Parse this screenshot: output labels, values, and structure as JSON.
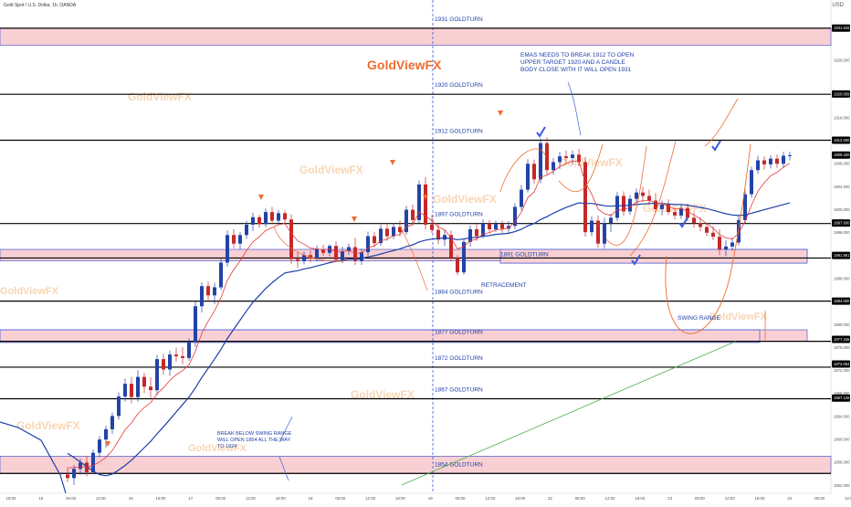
{
  "header": {
    "symbol": "Gold Spot / U.S. Dollar, 1h, OANDA",
    "currency": "USD"
  },
  "watermark": "GoldViewFX",
  "colors": {
    "up": "#2343a8",
    "down": "#c62828",
    "ema_fast": "#e53935",
    "ema_slow": "#1e3fa8",
    "ema_long": "#4caf50",
    "zone_fill": "#f8d0d4",
    "zone_stroke": "#4b5cd6",
    "level_line": "#000000",
    "annotation_text": "#1e3fa8",
    "projection": "#ef6c2f",
    "check": "#3b5bdb"
  },
  "chart_data": {
    "type": "candlestick",
    "yaxis_ticks": [
      "1931.526",
      "1926.000",
      "1920.000",
      "1916.000",
      "1912.000",
      "1908.000",
      "1904.000",
      "1900.000",
      "1896.000",
      "1892.000",
      "1888.000",
      "1884.000",
      "1880.000",
      "1876.000",
      "1872.000",
      "1868.000",
      "1864.000",
      "1860.000",
      "1856.000",
      "1852.000"
    ],
    "price_labels": [
      {
        "value": 1931.526,
        "text": "1931.526"
      },
      {
        "value": 1920.059,
        "text": "1920.059"
      },
      {
        "value": 1912.0,
        "text": "1912.000"
      },
      {
        "value": 1909.42,
        "text": "1909.420\n33:18"
      },
      {
        "value": 1897.6,
        "text": "1897.600"
      },
      {
        "value": 1891.951,
        "text": "1891.951"
      },
      {
        "value": 1884.0,
        "text": "1884.000"
      },
      {
        "value": 1877.345,
        "text": "1877.345"
      },
      {
        "value": 1873.054,
        "text": "1873.054"
      },
      {
        "value": 1867.126,
        "text": "1867.126"
      }
    ],
    "xaxis_ticks": [
      "18:00",
      "19",
      "06:00",
      "12:00",
      "16",
      "18:00",
      "17",
      "06:00",
      "12:00",
      "18:00",
      "18",
      "06:00",
      "12:00",
      "18:00",
      "19",
      "06:00",
      "12:00",
      "18:00",
      "22",
      "06:00",
      "12:00",
      "18:00",
      "23",
      "06:00",
      "12:00",
      "18:00",
      "24",
      "06:00",
      "12:00"
    ],
    "levels": [
      {
        "price": 1931.5,
        "label": "1931 GOLDTURN"
      },
      {
        "price": 1920.0,
        "label": "1920 GOLDTURN"
      },
      {
        "price": 1912.0,
        "label": "1912 GOLDTURN"
      },
      {
        "price": 1897.5,
        "label": "1897 GOLDTURN"
      },
      {
        "price": 1891.5,
        "label": "1891 GOLDTURN"
      },
      {
        "price": 1884.0,
        "label": "1884 GOLDTURN"
      },
      {
        "price": 1877.0,
        "label": "1877 GOLDTURN"
      },
      {
        "price": 1872.5,
        "label": "1872 GOLDTURN"
      },
      {
        "price": 1867.0,
        "label": "1867 GOLDTURN"
      },
      {
        "price": 1854.0,
        "label": "1854 GOLDTURN"
      }
    ],
    "zones": [
      {
        "top": 1931.5,
        "bottom": 1928.5
      },
      {
        "top": 1893.0,
        "bottom": 1891.0
      },
      {
        "top": 1879.0,
        "bottom": 1877.0
      },
      {
        "top": 1857.0,
        "bottom": 1854.0
      }
    ],
    "candles": [
      [
        1853.8,
        1855.0,
        1852.5,
        1853.2
      ],
      [
        1853.2,
        1855.5,
        1852.0,
        1854.8
      ],
      [
        1854.8,
        1856.6,
        1853.8,
        1855.9
      ],
      [
        1855.9,
        1857.0,
        1853.5,
        1854.2
      ],
      [
        1854.2,
        1858.2,
        1853.9,
        1857.6
      ],
      [
        1857.6,
        1860.5,
        1856.8,
        1859.9
      ],
      [
        1859.9,
        1862.3,
        1858.5,
        1861.7
      ],
      [
        1861.7,
        1864.6,
        1860.9,
        1864.0
      ],
      [
        1864.0,
        1868.1,
        1863.4,
        1867.4
      ],
      [
        1867.4,
        1870.5,
        1866.5,
        1869.6
      ],
      [
        1869.6,
        1870.8,
        1866.2,
        1867.3
      ],
      [
        1867.3,
        1872.0,
        1866.5,
        1870.8
      ],
      [
        1870.8,
        1871.5,
        1868.0,
        1869.1
      ],
      [
        1869.1,
        1870.7,
        1867.2,
        1868.5
      ],
      [
        1868.5,
        1874.6,
        1867.6,
        1873.9
      ],
      [
        1873.9,
        1874.8,
        1871.2,
        1872.1
      ],
      [
        1872.1,
        1875.4,
        1871.0,
        1874.7
      ],
      [
        1874.7,
        1875.9,
        1873.5,
        1874.4
      ],
      [
        1874.4,
        1876.0,
        1873.0,
        1874.1
      ],
      [
        1874.1,
        1877.5,
        1873.6,
        1876.9
      ],
      [
        1876.9,
        1884.0,
        1876.0,
        1883.1
      ],
      [
        1883.1,
        1887.3,
        1882.0,
        1886.6
      ],
      [
        1886.6,
        1887.4,
        1884.0,
        1885.0
      ],
      [
        1885.0,
        1887.2,
        1883.5,
        1886.4
      ],
      [
        1886.4,
        1891.5,
        1885.9,
        1890.7
      ],
      [
        1890.7,
        1896.3,
        1890.0,
        1895.5
      ],
      [
        1895.5,
        1896.5,
        1893.2,
        1894.0
      ],
      [
        1894.0,
        1896.0,
        1893.0,
        1895.5
      ],
      [
        1895.5,
        1898.0,
        1894.8,
        1897.3
      ],
      [
        1897.3,
        1899.4,
        1896.2,
        1898.6
      ],
      [
        1898.6,
        1899.0,
        1896.8,
        1897.4
      ],
      [
        1897.4,
        1900.1,
        1896.9,
        1899.5
      ],
      [
        1899.5,
        1900.4,
        1897.4,
        1898.0
      ],
      [
        1898.0,
        1899.9,
        1897.5,
        1899.3
      ],
      [
        1899.3,
        1899.8,
        1897.6,
        1898.2
      ],
      [
        1898.2,
        1899.1,
        1890.5,
        1891.3
      ],
      [
        1891.3,
        1892.5,
        1889.8,
        1891.0
      ],
      [
        1891.0,
        1892.6,
        1890.4,
        1892.0
      ],
      [
        1892.0,
        1892.8,
        1890.8,
        1891.4
      ],
      [
        1891.4,
        1893.7,
        1890.9,
        1893.0
      ],
      [
        1893.0,
        1893.8,
        1891.9,
        1892.4
      ],
      [
        1892.4,
        1893.9,
        1891.8,
        1893.6
      ],
      [
        1893.6,
        1894.4,
        1890.8,
        1891.2
      ],
      [
        1891.2,
        1893.5,
        1890.6,
        1892.7
      ],
      [
        1892.7,
        1894.0,
        1892.0,
        1893.4
      ],
      [
        1893.4,
        1895.0,
        1890.3,
        1891.0
      ],
      [
        1891.0,
        1893.2,
        1890.3,
        1892.5
      ],
      [
        1892.5,
        1896.1,
        1891.9,
        1895.3
      ],
      [
        1895.3,
        1896.0,
        1893.4,
        1894.1
      ],
      [
        1894.1,
        1897.3,
        1893.6,
        1896.6
      ],
      [
        1896.6,
        1897.5,
        1894.5,
        1895.3
      ],
      [
        1895.3,
        1897.6,
        1894.8,
        1896.9
      ],
      [
        1896.9,
        1898.0,
        1895.2,
        1896.0
      ],
      [
        1896.0,
        1900.6,
        1895.5,
        1899.9
      ],
      [
        1899.9,
        1900.8,
        1897.3,
        1898.1
      ],
      [
        1898.1,
        1905.0,
        1897.6,
        1904.3
      ],
      [
        1904.3,
        1905.6,
        1896.5,
        1897.3
      ],
      [
        1897.3,
        1899.0,
        1895.8,
        1896.4
      ],
      [
        1896.4,
        1897.5,
        1893.9,
        1894.7
      ],
      [
        1894.7,
        1896.4,
        1893.6,
        1895.5
      ],
      [
        1895.5,
        1896.3,
        1891.0,
        1891.5
      ],
      [
        1891.5,
        1892.0,
        1888.5,
        1889.0
      ],
      [
        1889.0,
        1895.0,
        1888.6,
        1894.3
      ],
      [
        1894.3,
        1897.2,
        1893.5,
        1896.5
      ],
      [
        1896.5,
        1897.4,
        1894.5,
        1895.3
      ],
      [
        1895.3,
        1898.2,
        1894.9,
        1897.5
      ],
      [
        1897.5,
        1898.1,
        1895.8,
        1896.5
      ],
      [
        1896.5,
        1898.0,
        1896.0,
        1897.4
      ],
      [
        1897.4,
        1898.0,
        1895.9,
        1896.6
      ],
      [
        1896.6,
        1897.9,
        1895.8,
        1897.1
      ],
      [
        1897.1,
        1901.0,
        1896.5,
        1900.4
      ],
      [
        1900.4,
        1904.2,
        1899.8,
        1903.4
      ],
      [
        1903.4,
        1908.7,
        1902.9,
        1907.9
      ],
      [
        1907.9,
        1908.6,
        1904.4,
        1905.2
      ],
      [
        1905.2,
        1912.3,
        1904.5,
        1911.5
      ],
      [
        1911.5,
        1912.5,
        1906.0,
        1906.8
      ],
      [
        1906.8,
        1908.9,
        1906.0,
        1908.2
      ],
      [
        1908.2,
        1910.0,
        1907.0,
        1909.2
      ],
      [
        1909.2,
        1910.2,
        1908.0,
        1908.9
      ],
      [
        1908.9,
        1910.2,
        1907.8,
        1909.5
      ],
      [
        1909.5,
        1910.5,
        1907.5,
        1908.2
      ],
      [
        1908.2,
        1909.1,
        1895.2,
        1896.0
      ],
      [
        1896.0,
        1898.8,
        1895.3,
        1898.0
      ],
      [
        1898.0,
        1898.9,
        1893.3,
        1894.0
      ],
      [
        1894.0,
        1898.5,
        1893.2,
        1897.6
      ],
      [
        1897.6,
        1899.2,
        1896.0,
        1898.5
      ],
      [
        1898.5,
        1903.0,
        1897.9,
        1902.3
      ],
      [
        1902.3,
        1903.1,
        1898.8,
        1899.6
      ],
      [
        1899.6,
        1902.5,
        1899.0,
        1901.8
      ],
      [
        1901.8,
        1903.6,
        1901.0,
        1902.9
      ],
      [
        1902.9,
        1903.9,
        1901.2,
        1902.3
      ],
      [
        1902.3,
        1903.4,
        1900.8,
        1901.5
      ],
      [
        1901.5,
        1902.8,
        1899.3,
        1900.0
      ],
      [
        1900.0,
        1901.5,
        1898.9,
        1900.8
      ],
      [
        1900.8,
        1901.7,
        1899.0,
        1899.5
      ],
      [
        1899.5,
        1900.3,
        1898.2,
        1898.9
      ],
      [
        1898.9,
        1900.9,
        1898.3,
        1900.2
      ],
      [
        1900.2,
        1901.0,
        1897.9,
        1898.5
      ],
      [
        1898.5,
        1899.4,
        1896.8,
        1897.6
      ],
      [
        1897.6,
        1898.6,
        1896.2,
        1896.9
      ],
      [
        1896.9,
        1897.6,
        1895.3,
        1895.9
      ],
      [
        1895.9,
        1897.0,
        1894.6,
        1895.2
      ],
      [
        1895.2,
        1896.5,
        1892.0,
        1893.0
      ],
      [
        1893.0,
        1894.6,
        1891.8,
        1893.5
      ],
      [
        1893.5,
        1895.0,
        1892.8,
        1894.2
      ],
      [
        1894.2,
        1898.8,
        1893.7,
        1898.1
      ],
      [
        1898.1,
        1903.4,
        1897.5,
        1902.6
      ],
      [
        1902.6,
        1907.4,
        1902.0,
        1906.8
      ],
      [
        1906.8,
        1909.3,
        1906.1,
        1908.5
      ],
      [
        1908.5,
        1909.2,
        1906.9,
        1907.8
      ],
      [
        1907.8,
        1909.4,
        1907.1,
        1908.8
      ],
      [
        1908.8,
        1909.5,
        1907.2,
        1907.9
      ],
      [
        1907.9,
        1910.0,
        1907.2,
        1909.3
      ],
      [
        1909.3,
        1910.0,
        1908.5,
        1909.4
      ]
    ],
    "ema_fast": [
      1855.0,
      1855.0,
      1855.2,
      1855.1,
      1855.4,
      1856.0,
      1856.8,
      1858.0,
      1859.8,
      1861.6,
      1862.8,
      1864.4,
      1865.5,
      1866.3,
      1867.9,
      1868.9,
      1870.2,
      1871.2,
      1871.9,
      1872.9,
      1875.3,
      1878.4,
      1880.5,
      1882.3,
      1884.6,
      1887.6,
      1889.5,
      1891.0,
      1892.8,
      1894.3,
      1895.2,
      1896.3,
      1896.8,
      1897.3,
      1897.5,
      1895.8,
      1894.5,
      1893.9,
      1893.2,
      1893.1,
      1892.9,
      1893.1,
      1892.5,
      1892.6,
      1892.8,
      1892.3,
      1892.4,
      1893.3,
      1893.6,
      1894.5,
      1894.8,
      1895.4,
      1895.6,
      1896.9,
      1897.3,
      1899.5,
      1898.8,
      1898.0,
      1896.9,
      1896.4,
      1895.0,
      1893.1,
      1893.5,
      1894.5,
      1894.8,
      1895.7,
      1895.9,
      1896.4,
      1896.5,
      1896.7,
      1897.8,
      1899.5,
      1902.0,
      1903.0,
      1905.6,
      1905.9,
      1906.6,
      1907.4,
      1907.9,
      1908.4,
      1908.3,
      1904.7,
      1902.6,
      1900.0,
      1899.2,
      1898.9,
      1899.9,
      1899.8,
      1900.4,
      1901.2,
      1901.5,
      1901.5,
      1901.1,
      1901.0,
      1900.5,
      1900.0,
      1900.1,
      1899.6,
      1899.0,
      1898.3,
      1897.5,
      1896.7,
      1895.6,
      1895.0,
      1894.8,
      1895.8,
      1897.9,
      1900.7,
      1903.1,
      1904.6,
      1905.8,
      1906.4,
      1907.3,
      1908.0
    ],
    "ema_slow": [
      1857.5,
      1856.8,
      1856.0,
      1855.2,
      1854.4,
      1853.8,
      1853.6,
      1853.9,
      1854.6,
      1855.4,
      1856.3,
      1857.4,
      1858.5,
      1859.6,
      1860.9,
      1862.1,
      1863.4,
      1864.7,
      1866.0,
      1867.3,
      1868.9,
      1870.7,
      1872.3,
      1873.9,
      1875.6,
      1877.5,
      1879.1,
      1880.7,
      1882.3,
      1883.8,
      1885.0,
      1886.2,
      1887.2,
      1888.1,
      1888.9,
      1889.1,
      1889.3,
      1889.6,
      1889.8,
      1890.1,
      1890.4,
      1890.7,
      1890.9,
      1891.1,
      1891.3,
      1891.3,
      1891.4,
      1891.7,
      1891.9,
      1892.2,
      1892.5,
      1892.8,
      1893.1,
      1893.5,
      1893.8,
      1894.3,
      1894.6,
      1894.8,
      1894.9,
      1895.0,
      1894.9,
      1894.7,
      1894.8,
      1895.0,
      1895.1,
      1895.3,
      1895.4,
      1895.6,
      1895.7,
      1895.8,
      1896.1,
      1896.5,
      1897.1,
      1897.5,
      1898.2,
      1898.7,
      1899.3,
      1899.8,
      1900.3,
      1900.7,
      1901.1,
      1901.0,
      1901.0,
      1900.8,
      1900.6,
      1900.5,
      1900.6,
      1900.6,
      1900.7,
      1900.8,
      1900.9,
      1901.0,
      1901.0,
      1901.0,
      1900.9,
      1900.8,
      1900.8,
      1900.7,
      1900.5,
      1900.3,
      1900.1,
      1899.8,
      1899.5,
      1899.2,
      1899.0,
      1898.9,
      1899.0,
      1899.3,
      1899.6,
      1899.9,
      1900.2,
      1900.5,
      1900.8,
      1901.1
    ],
    "ema_long_line": {
      "start_price": 1852.0,
      "end_price": 1877.0
    },
    "annotations": [
      {
        "text": "EMAS NEEDS TO BREAK 1912 TO OPEN\nUPPER TARGET 1920 AND A CANDLE\nBODY CLOSE WITH IT WILL OPEN 1931"
      },
      {
        "text": "RETRACEMENT"
      },
      {
        "text": "SWING RANGE"
      },
      {
        "text": "BREAK BELOW SWING RANGE\nWILL OPEN 1854 ALL THE WAY\nTO 1824"
      }
    ]
  }
}
